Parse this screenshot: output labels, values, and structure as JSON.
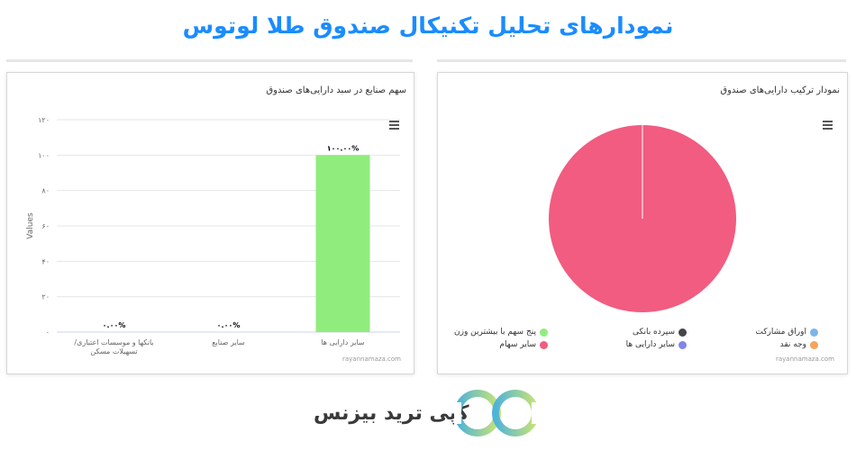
{
  "page": {
    "title": "نمودارهای تحلیل تکنیکال صندوق طلا لوتوس"
  },
  "colors": {
    "accent": "#1a8cff",
    "bar": "#90ed7d",
    "pie": "#f15c80"
  },
  "chart_data": [
    {
      "type": "bar",
      "title": "سهم صنایع در سبد دارایی‌های صندوق",
      "ylabel": "Values",
      "categories": [
        "بانکها و موسسات اعتباری/ تسهیلات مسکن",
        "سایر صنایع",
        "سایر دارایی ها"
      ],
      "values": [
        0,
        0,
        100
      ],
      "data_labels": [
        "۰.۰۰%",
        "۰.۰۰%",
        "۱۰۰.۰۰%"
      ],
      "ylim": [
        0,
        120
      ],
      "yticks": [
        0,
        20,
        40,
        60,
        80,
        100,
        120
      ],
      "ytick_labels": [
        "۰",
        "۲۰",
        "۴۰",
        "۶۰",
        "۸۰",
        "۱۰۰",
        "۱۲۰"
      ],
      "credits": "rayannamaza.com",
      "grid": true,
      "legend": "none"
    },
    {
      "type": "pie",
      "title": "نمودار ترکیب دارایی‌های صندوق",
      "slices": [
        {
          "label": "اوراق مشارکت",
          "value": 0,
          "color": "#7cb5ec"
        },
        {
          "label": "سپرده بانکی",
          "value": 0,
          "color": "#434348"
        },
        {
          "label": "پنج سهم با بیشترین وزن",
          "value": 0,
          "color": "#90ed7d"
        },
        {
          "label": "وجه نقد",
          "value": 0,
          "color": "#f7a35c"
        },
        {
          "label": "سایر دارایی ها",
          "value": 0,
          "color": "#8085e9"
        },
        {
          "label": "سایر سهام",
          "value": 100,
          "color": "#f15c80"
        }
      ],
      "credits": "rayannamaza.com",
      "legend": "bottom"
    }
  ],
  "footer": {
    "brand": "کپی ترید بیزنس"
  }
}
